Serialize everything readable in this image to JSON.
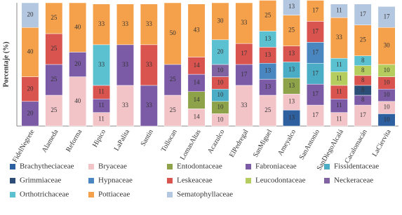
{
  "chart_data": {
    "type": "stacked-bar",
    "y_label": "Porcentaje (%)",
    "categories": [
      "FidelNegrete",
      "Alameda",
      "Reforma",
      "Hipico",
      "LaPalita",
      "Santin",
      "Tollocan",
      "LomasAltas",
      "Acazulco",
      "ElPedregal",
      "SanMiguel",
      "Ameyalco",
      "SanAntonio",
      "SanDiegoAlcalá",
      "Cacalomacán",
      "LaCiervita"
    ],
    "ylim": [
      0,
      100
    ],
    "series": [
      {
        "name": "Brachytheciaceae",
        "color": "#2e5f9e",
        "values": [
          null,
          null,
          null,
          null,
          null,
          null,
          null,
          null,
          null,
          null,
          null,
          13,
          null,
          null,
          null,
          10
        ]
      },
      {
        "name": "Bryaceae",
        "color": "#f2c4c8",
        "values": [
          null,
          25,
          40,
          11,
          33,
          null,
          25,
          14,
          10,
          33,
          25,
          13,
          17,
          11,
          17,
          10
        ]
      },
      {
        "name": "Entodontaceae",
        "color": "#8ea24a",
        "values": [
          null,
          null,
          null,
          null,
          null,
          null,
          null,
          14,
          10,
          null,
          null,
          13,
          null,
          null,
          null,
          null
        ]
      },
      {
        "name": "Fabroniaceae",
        "color": "#7b5aa6",
        "values": [
          20,
          25,
          20,
          11,
          33,
          33,
          25,
          14,
          null,
          17,
          13,
          null,
          17,
          11,
          8,
          10
        ]
      },
      {
        "name": "Fissidentaceae",
        "color": "#4bacc6",
        "values": [
          null,
          null,
          null,
          null,
          null,
          null,
          null,
          null,
          10,
          null,
          null,
          13,
          17,
          null,
          null,
          null
        ]
      },
      {
        "name": "Grimmiaceae",
        "color": "#2c4d75",
        "values": [
          null,
          null,
          null,
          null,
          null,
          null,
          null,
          null,
          null,
          null,
          null,
          null,
          null,
          null,
          8,
          null
        ]
      },
      {
        "name": "Hypnaceae",
        "color": "#4a86c0",
        "values": [
          null,
          null,
          null,
          null,
          null,
          null,
          null,
          null,
          null,
          null,
          13,
          null,
          17,
          null,
          null,
          null
        ]
      },
      {
        "name": "Leskeaceae",
        "color": "#d9534f",
        "values": [
          20,
          25,
          null,
          11,
          null,
          33,
          null,
          14,
          10,
          17,
          13,
          13,
          17,
          11,
          8,
          10
        ]
      },
      {
        "name": "Leucodontaceae",
        "color": "#b5cc5e",
        "values": [
          null,
          null,
          null,
          null,
          null,
          null,
          null,
          null,
          null,
          null,
          null,
          null,
          null,
          11,
          8,
          10
        ]
      },
      {
        "name": "Neckeraceae",
        "color": "#8064a2",
        "values": [
          null,
          null,
          null,
          null,
          null,
          null,
          null,
          null,
          10,
          null,
          null,
          null,
          null,
          null,
          null,
          null
        ]
      },
      {
        "name": "Orthotrichaceae",
        "color": "#5bc0d0",
        "values": [
          null,
          null,
          null,
          33,
          null,
          null,
          null,
          null,
          20,
          null,
          13,
          null,
          null,
          11,
          8,
          null
        ]
      },
      {
        "name": "Pottiaceae",
        "color": "#f5a04a",
        "values": [
          40,
          25,
          40,
          33,
          33,
          33,
          50,
          43,
          30,
          33,
          25,
          25,
          17,
          33,
          25,
          30
        ]
      },
      {
        "name": "Sematophyllaceae",
        "color": "#b4c7e0",
        "values": [
          20,
          null,
          null,
          null,
          null,
          null,
          null,
          null,
          null,
          null,
          null,
          13,
          null,
          11,
          17,
          17
        ]
      }
    ]
  }
}
